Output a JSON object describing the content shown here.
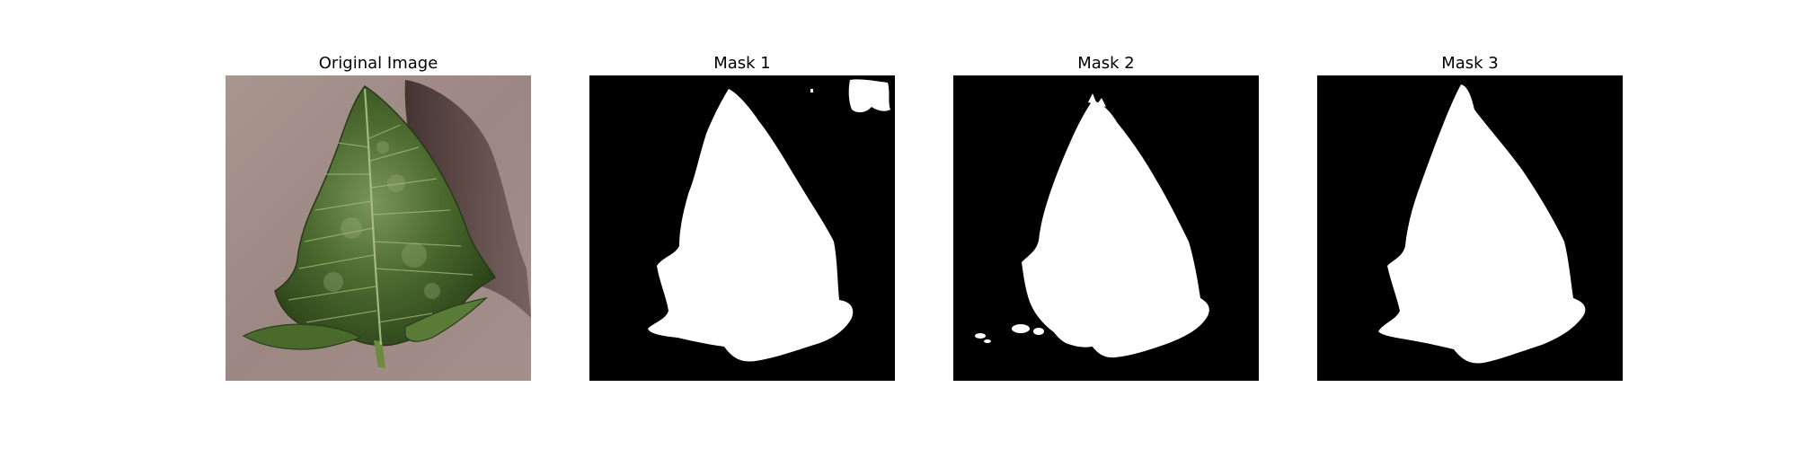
{
  "panels": [
    {
      "title": "Original Image",
      "image": "leaf-photo"
    },
    {
      "title": "Mask 1",
      "image": "segmentation-mask"
    },
    {
      "title": "Mask 2",
      "image": "segmentation-mask"
    },
    {
      "title": "Mask 3",
      "image": "segmentation-mask"
    }
  ],
  "colors": {
    "mask_background": "#000000",
    "mask_foreground": "#ffffff",
    "photo_background": "#a49090",
    "leaf_dark": "#2f4a1c",
    "leaf_light": "#6b8a4a"
  }
}
